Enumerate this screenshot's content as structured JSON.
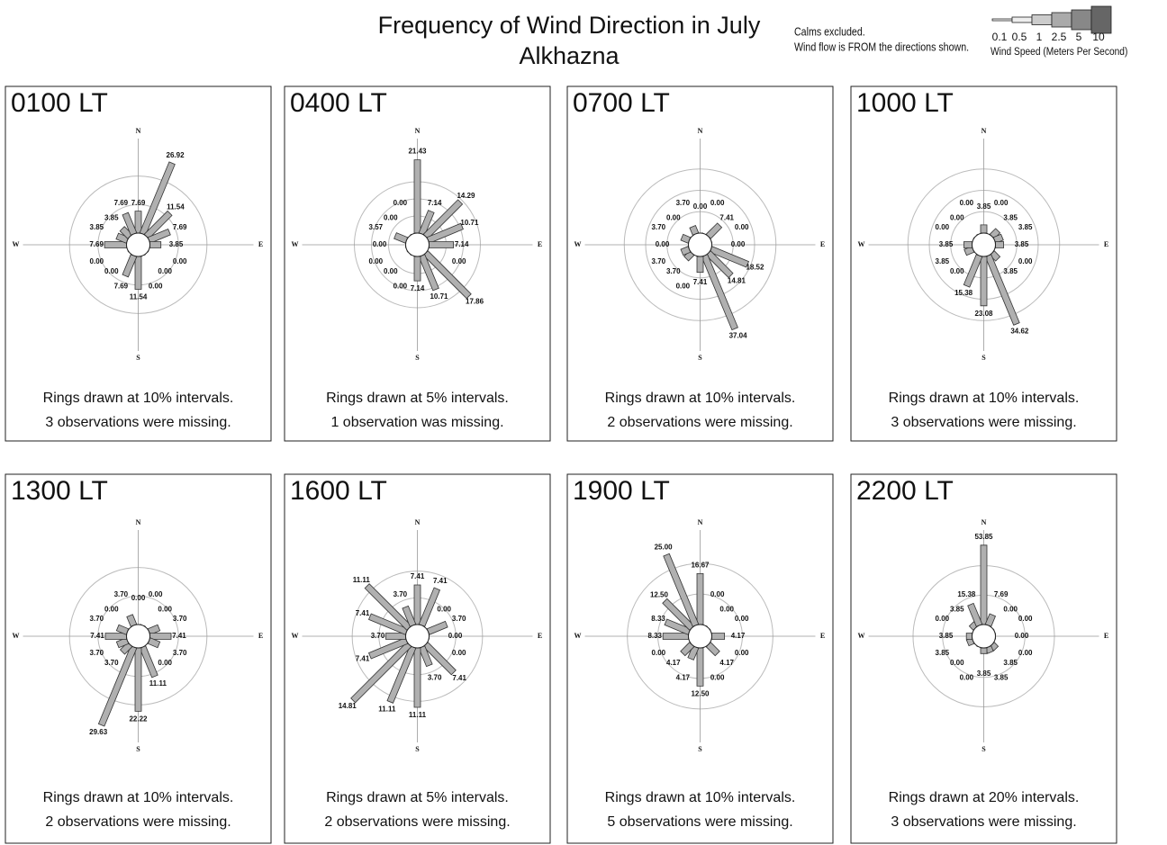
{
  "header": {
    "title": "Frequency of Wind Direction in July",
    "subtitle": "Alkhazna",
    "notes": [
      "Calms excluded.",
      "Wind flow is FROM the directions shown."
    ],
    "legend": {
      "speeds": [
        0.1,
        0.5,
        1,
        2.5,
        5,
        10
      ],
      "label": "Wind Speed  (Meters Per Second)"
    }
  },
  "chart_data": [
    {
      "type": "windrose",
      "title": "0100 LT",
      "color": "#b0b0b0",
      "categories": [
        "N",
        null,
        null,
        null,
        "E",
        null,
        null,
        null,
        "S",
        null,
        null,
        null,
        "W",
        null,
        null,
        null
      ],
      "values": [
        7.69,
        26.92,
        11.54,
        7.69,
        3.85,
        0,
        0,
        0,
        11.54,
        7.69,
        0,
        0,
        7.69,
        3.85,
        3.85,
        7.69
      ],
      "value_labels": [
        "7.69",
        "26.92",
        "11.54",
        "7.69",
        "3.85",
        "0.00",
        "0.00",
        "0.00",
        "11.54",
        "7.69",
        "0.00",
        "0.00",
        "7.69",
        "3.85",
        "3.85",
        "7.69"
      ],
      "rlim": [
        0,
        30
      ],
      "rings": [
        10,
        20
      ],
      "notes": [
        "Rings drawn at 10% intervals.",
        "3 observations were missing."
      ]
    },
    {
      "type": "windrose",
      "title": "0400 LT",
      "color": "#b0b0b0",
      "categories": [
        "N",
        null,
        null,
        null,
        "E",
        null,
        null,
        null,
        "S",
        null,
        null,
        null,
        "W",
        null,
        null,
        null
      ],
      "values": [
        21.43,
        7.14,
        14.29,
        10.71,
        7.14,
        0,
        17.86,
        10.71,
        7.14,
        0,
        0,
        0,
        0,
        3.57,
        0,
        0
      ],
      "value_labels": [
        "21.43",
        "7.14",
        "14.29",
        "10.71",
        "7.14",
        "0.00",
        "17.86",
        "10.71",
        "7.14",
        "0.00",
        "0.00",
        "0.00",
        "0.00",
        "3.57",
        "0.00",
        "0.00"
      ],
      "rlim": [
        0,
        25
      ],
      "rings": [
        5,
        10,
        15
      ],
      "notes": [
        "Rings drawn at  5% intervals.",
        "1 observation was missing."
      ]
    },
    {
      "type": "windrose",
      "title": "0700 LT",
      "color": "#b0b0b0",
      "categories": [
        "N",
        null,
        null,
        null,
        "E",
        null,
        null,
        null,
        "S",
        null,
        null,
        null,
        "W",
        null,
        null,
        null
      ],
      "values": [
        0,
        0,
        7.41,
        0,
        0,
        18.52,
        14.81,
        37.04,
        7.41,
        0,
        3.7,
        3.7,
        0,
        3.7,
        0,
        3.7
      ],
      "value_labels": [
        "0.00",
        "0.00",
        "7.41",
        "0.00",
        "0.00",
        "18.52",
        "14.81",
        "37.04",
        "7.41",
        "0.00",
        "3.70",
        "3.70",
        "0.00",
        "3.70",
        "0.00",
        "3.70"
      ],
      "rlim": [
        0,
        40
      ],
      "rings": [
        10,
        20,
        30
      ],
      "notes": [
        "Rings drawn at 10% intervals.",
        "2 observations were missing."
      ]
    },
    {
      "type": "windrose",
      "title": "1000 LT",
      "color": "#b0b0b0",
      "categories": [
        "N",
        null,
        null,
        null,
        "E",
        null,
        null,
        null,
        "S",
        null,
        null,
        null,
        "W",
        null,
        null,
        null
      ],
      "values": [
        3.85,
        0,
        3.85,
        3.85,
        3.85,
        0,
        3.85,
        34.62,
        23.08,
        15.38,
        0,
        3.85,
        3.85,
        0,
        0,
        0
      ],
      "value_labels": [
        "3.85",
        "0.00",
        "3.85",
        "3.85",
        "3.85",
        "0.00",
        "3.85",
        "34.62",
        "23.08",
        "15.38",
        "0.00",
        "3.85",
        "3.85",
        "0.00",
        "0.00",
        "0.00"
      ],
      "rlim": [
        0,
        40
      ],
      "rings": [
        10,
        20,
        30
      ],
      "notes": [
        "Rings drawn at 10% intervals.",
        "3 observations were missing."
      ]
    },
    {
      "type": "windrose",
      "title": "1300 LT",
      "color": "#b0b0b0",
      "categories": [
        "N",
        null,
        null,
        null,
        "E",
        null,
        null,
        null,
        "S",
        null,
        null,
        null,
        "W",
        null,
        null,
        null
      ],
      "values": [
        0,
        0,
        0,
        3.7,
        7.41,
        3.7,
        0,
        11.11,
        22.22,
        29.63,
        3.7,
        3.7,
        7.41,
        3.7,
        0,
        3.7
      ],
      "value_labels": [
        "0.00",
        "0.00",
        "0.00",
        "3.70",
        "7.41",
        "3.70",
        "0.00",
        "11.11",
        "22.22",
        "29.63",
        "3.70",
        "3.70",
        "7.41",
        "3.70",
        "0.00",
        "3.70"
      ],
      "rlim": [
        0,
        30
      ],
      "rings": [
        10,
        20
      ],
      "notes": [
        "Rings drawn at 10% intervals.",
        "2 observations were missing."
      ]
    },
    {
      "type": "windrose",
      "title": "1600 LT",
      "color": "#b0b0b0",
      "categories": [
        "N",
        null,
        null,
        null,
        "E",
        null,
        null,
        null,
        "S",
        null,
        null,
        null,
        "W",
        null,
        null,
        null
      ],
      "values": [
        7.41,
        7.41,
        0,
        3.7,
        0,
        0,
        7.41,
        3.7,
        11.11,
        11.11,
        14.81,
        7.41,
        3.7,
        7.41,
        11.11,
        3.7
      ],
      "value_labels": [
        "7.41",
        "7.41",
        "0.00",
        "3.70",
        "0.00",
        "0.00",
        "7.41",
        "3.70",
        "11.11",
        "11.11",
        "14.81",
        "7.41",
        "3.70",
        "7.41",
        "11.11",
        "3.70"
      ],
      "rlim": [
        0,
        16
      ],
      "rings": [
        5,
        10
      ],
      "notes": [
        "Rings drawn at  5% intervals.",
        "2 observations were missing."
      ]
    },
    {
      "type": "windrose",
      "title": "1900 LT",
      "color": "#b0b0b0",
      "categories": [
        "N",
        null,
        null,
        null,
        "E",
        null,
        null,
        null,
        "S",
        null,
        null,
        null,
        "W",
        null,
        null,
        null
      ],
      "values": [
        16.67,
        0,
        0,
        0,
        4.17,
        0,
        4.17,
        0,
        12.5,
        4.17,
        4.17,
        0,
        8.33,
        8.33,
        12.5,
        25.0
      ],
      "value_labels": [
        "16.67",
        "0.00",
        "0.00",
        "0.00",
        "4.17",
        "0.00",
        "4.17",
        "0.00",
        "12.50",
        "4.17",
        "4.17",
        "0.00",
        "8.33",
        "8.33",
        "12.50",
        "25.00"
      ],
      "rlim": [
        0,
        28
      ],
      "rings": [
        10,
        20
      ],
      "notes": [
        "Rings drawn at 10% intervals.",
        "5 observations were missing."
      ]
    },
    {
      "type": "windrose",
      "title": "2200 LT",
      "color": "#b0b0b0",
      "categories": [
        "N",
        null,
        null,
        null,
        "E",
        null,
        null,
        null,
        "S",
        null,
        null,
        null,
        "W",
        null,
        null,
        null
      ],
      "values": [
        53.85,
        7.69,
        0,
        0,
        0,
        0,
        3.85,
        3.85,
        3.85,
        0,
        0,
        3.85,
        3.85,
        0,
        3.85,
        15.38
      ],
      "value_labels": [
        "53.85",
        "7.69",
        "0.00",
        "0.00",
        "0.00",
        "0.00",
        "3.85",
        "3.85",
        "3.85",
        "0.00",
        "0.00",
        "3.85",
        "3.85",
        "0.00",
        "3.85",
        "15.38"
      ],
      "rlim": [
        0,
        58
      ],
      "rings": [
        20,
        40
      ],
      "notes": [
        "Rings drawn at 20% intervals.",
        "3 observations were missing."
      ]
    }
  ]
}
